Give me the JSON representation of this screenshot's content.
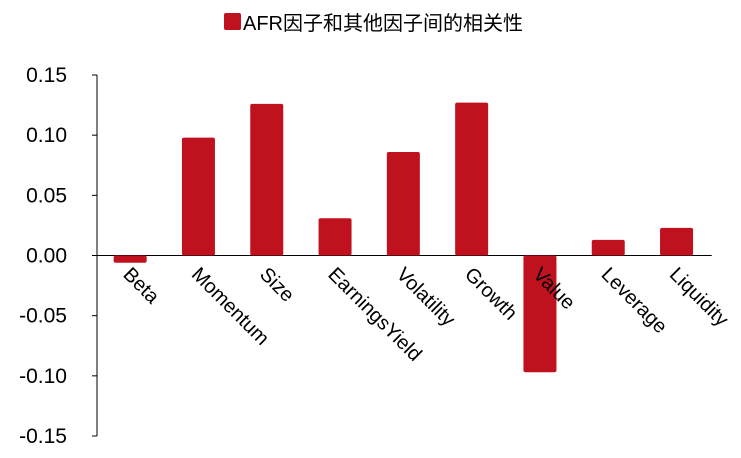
{
  "chart_data": {
    "type": "bar",
    "title": "",
    "xlabel": "",
    "ylabel": "",
    "legend": {
      "position": "top",
      "entries": [
        "AFR因子和其他因子间的相关性"
      ]
    },
    "categories": [
      "Beta",
      "Momentum",
      "Size",
      "EarningsYield",
      "Volatility",
      "Growth",
      "Value",
      "Leverage",
      "Liquidity"
    ],
    "series": [
      {
        "name": "AFR因子和其他因子间的相关性",
        "color": "#c0111f",
        "values": [
          -0.006,
          0.098,
          0.126,
          0.031,
          0.086,
          0.127,
          -0.097,
          0.013,
          0.023
        ]
      }
    ],
    "ylim": [
      -0.15,
      0.15
    ],
    "yticks": [
      "0.15",
      "0.10",
      "0.05",
      "0.00",
      "-0.05",
      "-0.10",
      "-0.15"
    ],
    "ytick_values": [
      0.15,
      0.1,
      0.05,
      0.0,
      -0.05,
      -0.1,
      -0.15
    ],
    "grid": false
  }
}
